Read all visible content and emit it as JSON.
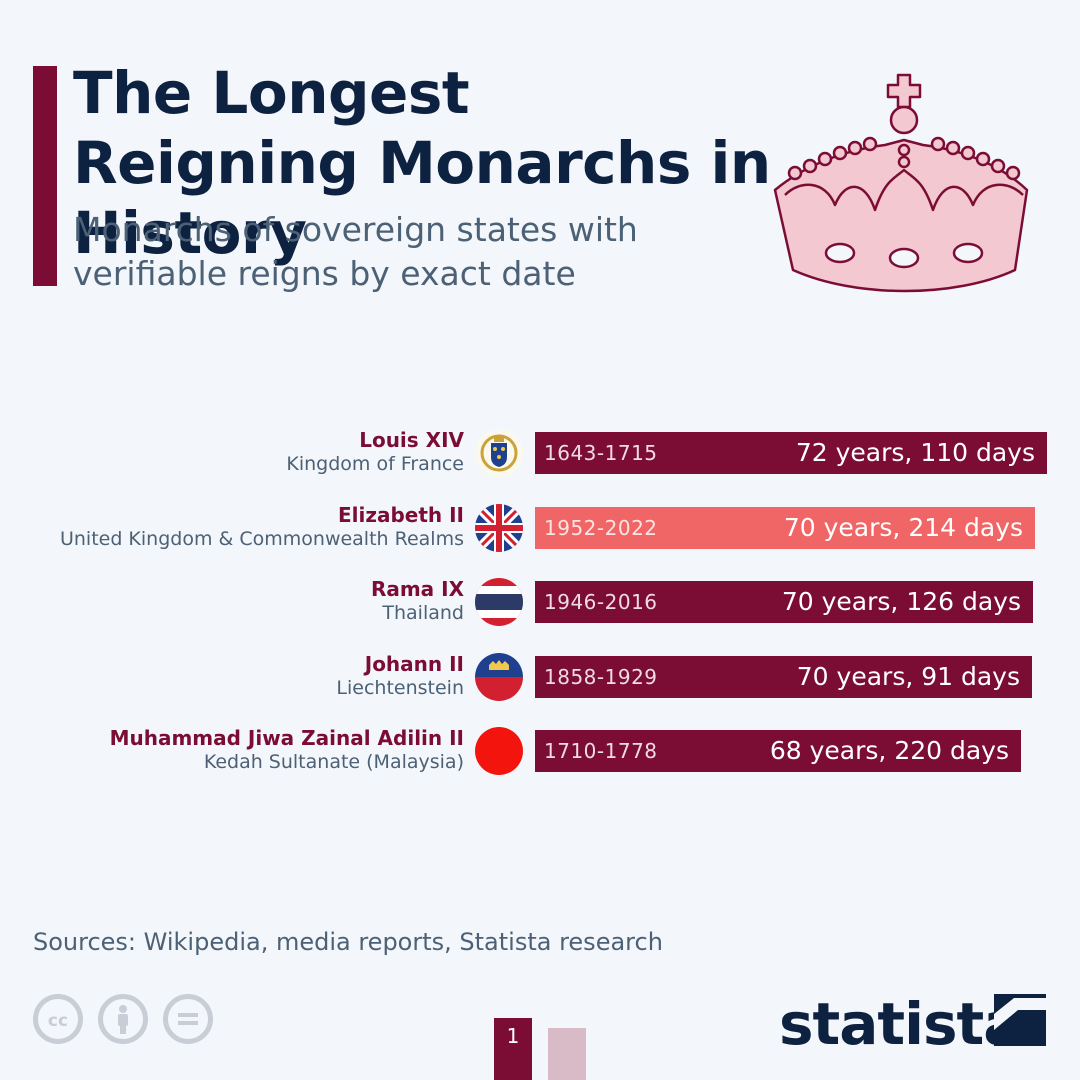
{
  "header": {
    "title": "The Longest Reigning Monarchs in History",
    "subtitle": "Monarchs of sovereign states with verifiable reigns by exact date"
  },
  "footer": {
    "sources": "Sources: Wikipedia, media reports, Statista research",
    "brand": "statista",
    "page_label": "1"
  },
  "colors": {
    "accent": "#7b0d35",
    "highlight": "#f06565",
    "title": "#0d2240",
    "crown": "#f4c8d0"
  },
  "icons": [
    "crown-icon",
    "cc-icon",
    "attribution-icon",
    "no-derivatives-icon",
    "statista-logo-icon"
  ],
  "chart_data": {
    "type": "bar",
    "orientation": "horizontal",
    "grid": false,
    "unit": "days",
    "categories": [
      "Louis XIV",
      "Elizabeth II",
      "Rama IX",
      "Johann II",
      "Muhammad Jiwa Zainal Adilin II"
    ],
    "rows": [
      {
        "name": "Louis XIV",
        "region": "Kingdom of France",
        "period": "1643-1715",
        "label": "72 years, 110 days",
        "value": 26408,
        "color": "#7b0d35",
        "flag": "france-royal-arms-icon"
      },
      {
        "name": "Elizabeth II",
        "region": "United Kingdom & Commonwealth Realms",
        "period": "1952-2022",
        "label": "70 years, 214 days",
        "value": 25782,
        "color": "#f06565",
        "flag": "uk-flag-icon"
      },
      {
        "name": "Rama IX",
        "region": "Thailand",
        "period": "1946-2016",
        "label": "70 years, 126 days",
        "value": 25694,
        "color": "#7b0d35",
        "flag": "thailand-flag-icon"
      },
      {
        "name": "Johann II",
        "region": "Liechtenstein",
        "period": "1858-1929",
        "label": "70 years, 91 days",
        "value": 25659,
        "color": "#7b0d35",
        "flag": "liechtenstein-flag-icon"
      },
      {
        "name": "Muhammad Jiwa Zainal Adilin II",
        "region": "Kedah Sultanate (Malaysia)",
        "period": "1710-1778",
        "label": "68 years, 220 days",
        "value": 25055,
        "color": "#7b0d35",
        "flag": "kedah-flag-icon"
      }
    ]
  }
}
